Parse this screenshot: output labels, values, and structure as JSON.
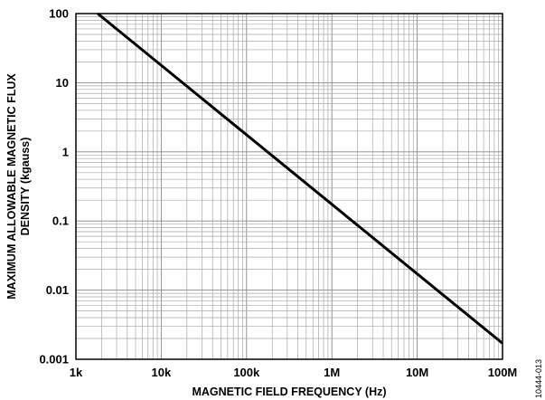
{
  "chart_data": {
    "type": "line",
    "x_scale": "log",
    "y_scale": "log",
    "xlim": [
      1000,
      100000000
    ],
    "ylim": [
      0.001,
      100
    ],
    "xlabel": "MAGNETIC FIELD FREQUENCY (Hz)",
    "ylabel_line1": "MAXIMUM ALLOWABLE MAGNETIC FLUX",
    "ylabel_line2": "DENSITY (kgauss)",
    "x_ticks": [
      1000,
      10000,
      100000,
      1000000,
      10000000,
      100000000
    ],
    "x_tick_labels": [
      "1k",
      "10k",
      "100k",
      "1M",
      "10M",
      "100M"
    ],
    "y_ticks": [
      0.001,
      0.01,
      0.1,
      1,
      10,
      100
    ],
    "y_tick_labels": [
      "0.001",
      "0.01",
      "0.1",
      "1",
      "10",
      "100"
    ],
    "grid": true,
    "series": [
      {
        "x": [
          1800,
          100000000
        ],
        "y": [
          100,
          0.0017
        ]
      }
    ],
    "figure_id": "10444-013"
  }
}
